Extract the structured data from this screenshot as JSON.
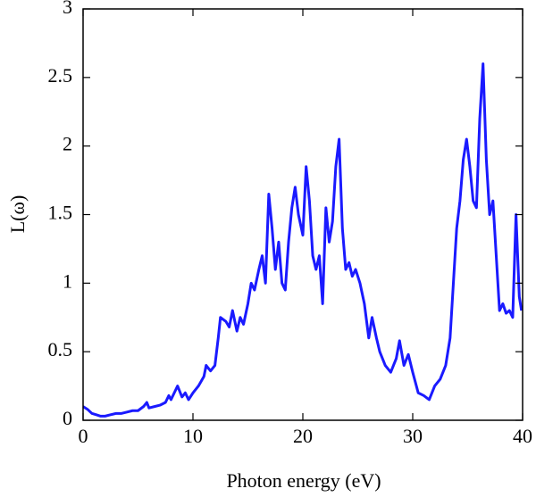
{
  "chart_data": {
    "type": "line",
    "xlabel": "Photon energy (eV)",
    "ylabel": "L(ω)",
    "xlim": [
      0,
      40
    ],
    "ylim": [
      0,
      3
    ],
    "xticks": [
      0,
      10,
      20,
      30,
      40
    ],
    "yticks": [
      0,
      0.5,
      1,
      1.5,
      2,
      2.5,
      3
    ],
    "series": [
      {
        "color": "#1a1aff",
        "x": [
          0,
          0.4,
          0.8,
          1.2,
          1.6,
          2,
          2.5,
          3,
          3.5,
          4,
          4.5,
          5,
          5.5,
          5.8,
          6,
          6.5,
          7,
          7.5,
          7.8,
          8,
          8.3,
          8.6,
          9,
          9.3,
          9.6,
          10,
          10.5,
          11,
          11.2,
          11.6,
          12,
          12.3,
          12.5,
          13,
          13.3,
          13.6,
          14,
          14.3,
          14.6,
          15,
          15.3,
          15.6,
          16,
          16.3,
          16.6,
          16.9,
          17.2,
          17.5,
          17.8,
          18.1,
          18.4,
          18.7,
          19,
          19.3,
          19.6,
          20,
          20.3,
          20.6,
          20.9,
          21.2,
          21.5,
          21.8,
          22.1,
          22.4,
          22.7,
          23,
          23.3,
          23.6,
          23.9,
          24.2,
          24.5,
          24.8,
          25.2,
          25.6,
          26,
          26.3,
          26.7,
          27,
          27.5,
          28,
          28.5,
          28.8,
          29.2,
          29.6,
          30,
          30.5,
          31,
          31.5,
          32,
          32.5,
          33,
          33.4,
          33.7,
          34,
          34.3,
          34.6,
          34.9,
          35.2,
          35.5,
          35.8,
          36.1,
          36.4,
          36.7,
          37,
          37.3,
          37.6,
          37.9,
          38.2,
          38.5,
          38.8,
          39.1,
          39.4,
          39.7,
          39.9
        ],
        "values": [
          0.1,
          0.08,
          0.05,
          0.04,
          0.03,
          0.03,
          0.04,
          0.05,
          0.05,
          0.06,
          0.07,
          0.07,
          0.1,
          0.13,
          0.09,
          0.1,
          0.11,
          0.13,
          0.18,
          0.15,
          0.2,
          0.25,
          0.17,
          0.2,
          0.15,
          0.2,
          0.25,
          0.32,
          0.4,
          0.36,
          0.4,
          0.6,
          0.75,
          0.72,
          0.68,
          0.8,
          0.65,
          0.75,
          0.7,
          0.85,
          1.0,
          0.95,
          1.1,
          1.2,
          1.0,
          1.65,
          1.4,
          1.1,
          1.3,
          1.0,
          0.95,
          1.3,
          1.55,
          1.7,
          1.5,
          1.35,
          1.85,
          1.6,
          1.2,
          1.1,
          1.2,
          0.85,
          1.55,
          1.3,
          1.45,
          1.85,
          2.05,
          1.4,
          1.1,
          1.15,
          1.05,
          1.1,
          1.0,
          0.85,
          0.6,
          0.75,
          0.6,
          0.5,
          0.4,
          0.35,
          0.45,
          0.58,
          0.4,
          0.48,
          0.35,
          0.2,
          0.18,
          0.15,
          0.25,
          0.3,
          0.4,
          0.6,
          1.0,
          1.4,
          1.6,
          1.9,
          2.05,
          1.85,
          1.6,
          1.55,
          2.2,
          2.6,
          1.9,
          1.5,
          1.6,
          1.2,
          0.8,
          0.85,
          0.78,
          0.8,
          0.75,
          1.5,
          0.9,
          0.8
        ]
      }
    ]
  }
}
